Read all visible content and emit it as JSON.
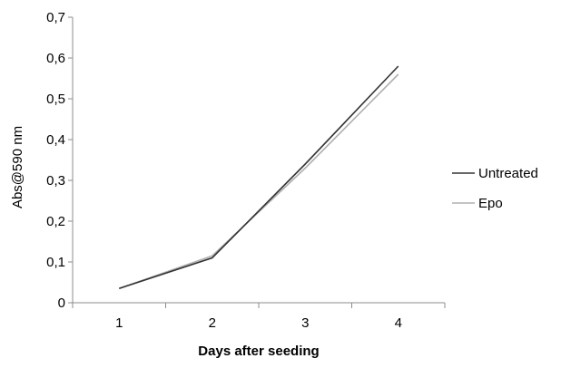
{
  "chart_data": {
    "type": "line",
    "title": "",
    "xlabel": "Days after seeding",
    "ylabel": "Abs@590 nm",
    "categories": [
      "1",
      "2",
      "3",
      "4"
    ],
    "ylim": [
      0,
      0.7
    ],
    "yticks": [
      "0",
      "0,1",
      "0,2",
      "0,3",
      "0,4",
      "0,5",
      "0,6",
      "0,7"
    ],
    "ytick_values": [
      0,
      0.1,
      0.2,
      0.3,
      0.4,
      0.5,
      0.6,
      0.7
    ],
    "grid": false,
    "legend_position": "right",
    "series": [
      {
        "name": "Untreated",
        "color": "#333333",
        "values": [
          0.035,
          0.11,
          0.34,
          0.58
        ]
      },
      {
        "name": "Epo",
        "color": "#b0b0b0",
        "values": [
          0.035,
          0.115,
          0.33,
          0.56
        ]
      }
    ]
  }
}
